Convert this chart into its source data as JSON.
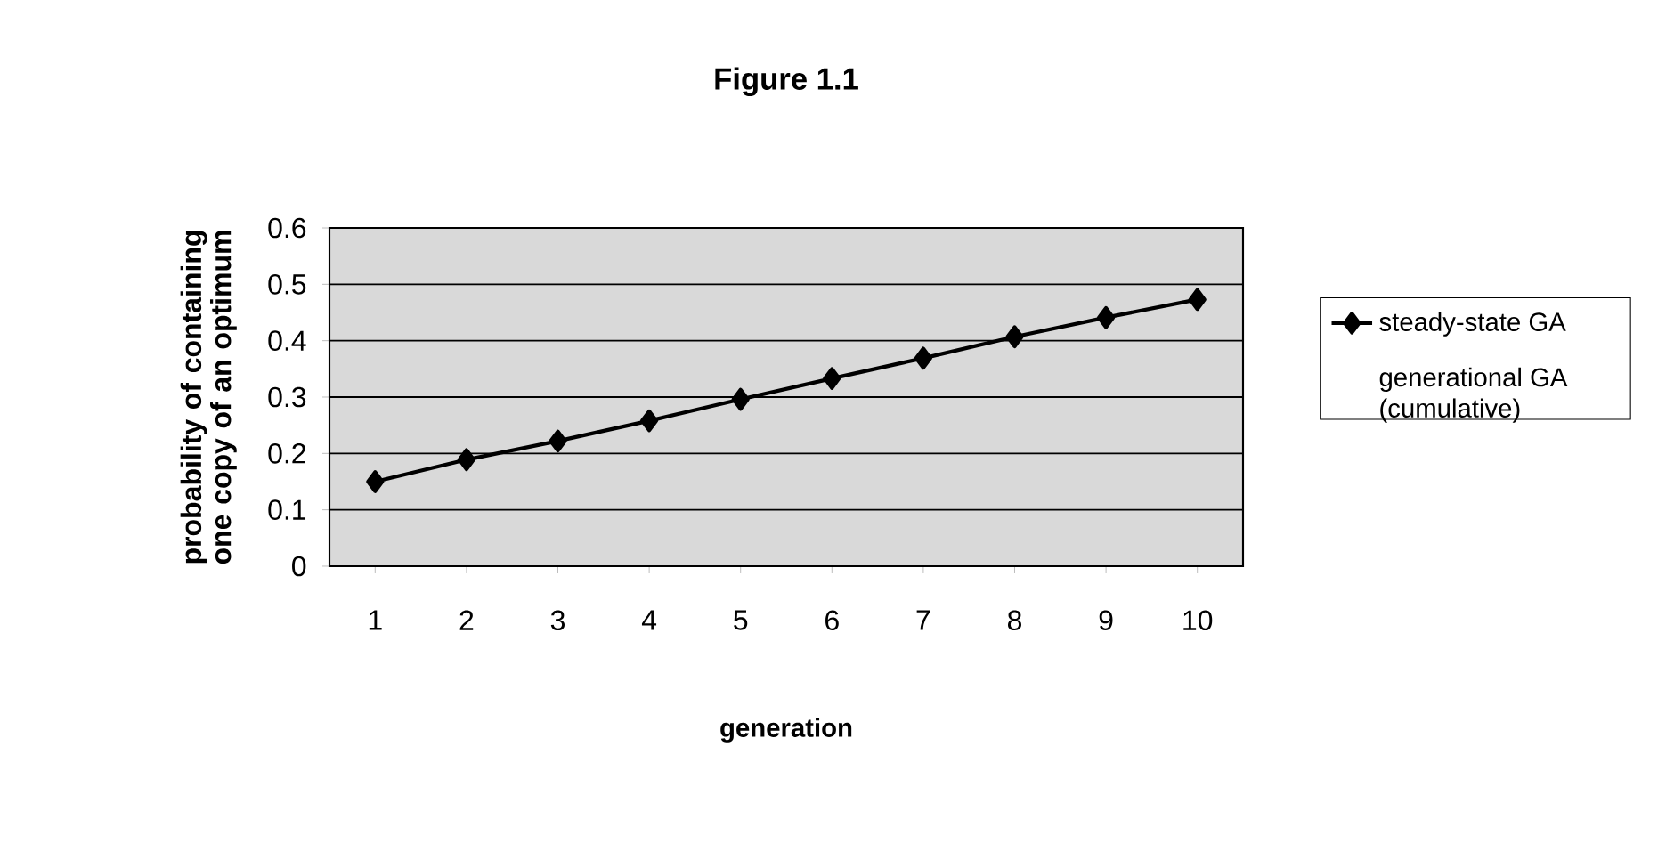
{
  "chart_data": {
    "type": "line",
    "title": "Figure 1.1",
    "xlabel": "generation",
    "ylabel": "probability of containing one copy of an optimum",
    "categories": [
      "1",
      "2",
      "3",
      "4",
      "5",
      "6",
      "7",
      "8",
      "9",
      "10"
    ],
    "series": [
      {
        "name": "steady-state GA",
        "color": "#000000",
        "values": [
          0.15,
          0.189,
          0.222,
          0.258,
          0.296,
          0.333,
          0.369,
          0.407,
          0.441,
          0.473
        ]
      },
      {
        "name": "generational GA (cumulative)",
        "values": [
          null,
          null,
          null,
          null,
          null,
          null,
          null,
          null,
          null,
          null
        ]
      }
    ],
    "ylim": [
      0,
      0.6
    ],
    "yticks": [
      0,
      0.1,
      0.2,
      0.3,
      0.4,
      0.5,
      0.6
    ],
    "grid": "y",
    "legend": "right",
    "marker": "diamond",
    "line_style": "solid"
  }
}
